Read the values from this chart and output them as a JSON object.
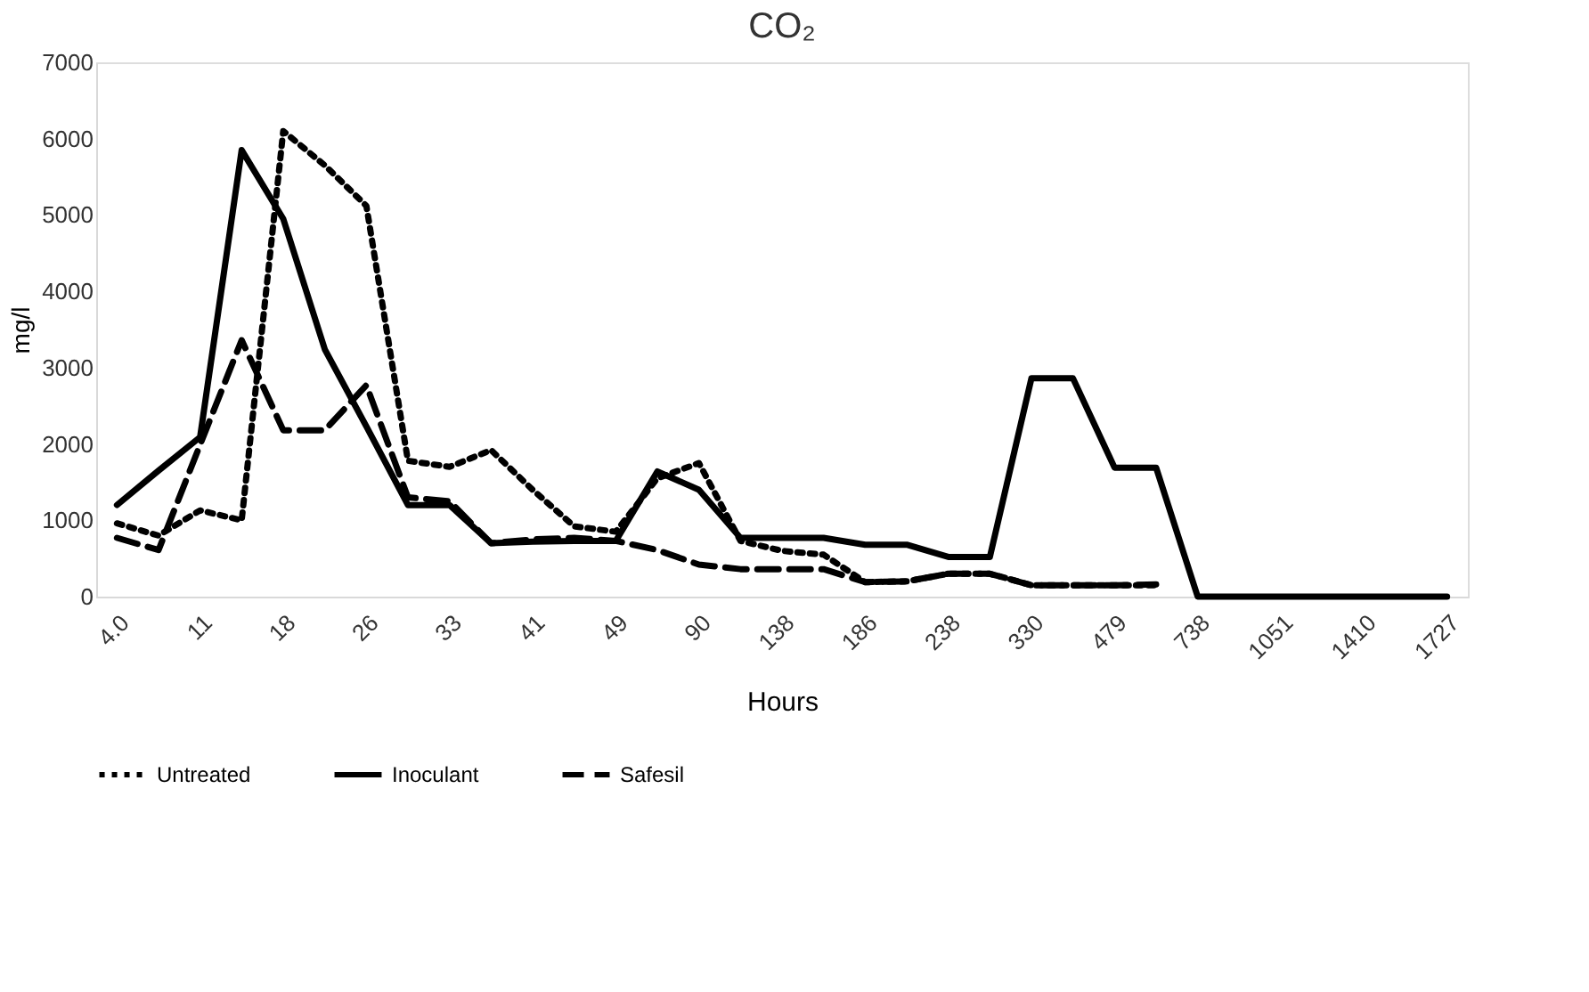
{
  "chart_data": {
    "type": "line",
    "title": "CO₂",
    "xlabel": "Hours",
    "ylabel": "mg/l",
    "categories": [
      "4.0",
      null,
      "11",
      null,
      "18",
      null,
      "26",
      null,
      "33",
      null,
      "41",
      null,
      "49",
      null,
      "90",
      null,
      "138",
      null,
      "186",
      null,
      "238",
      null,
      "330",
      null,
      "479",
      null,
      "738",
      null,
      "1051",
      null,
      "1410",
      null,
      "1727"
    ],
    "ylim": [
      0,
      7000
    ],
    "yticks": [
      0,
      1000,
      2000,
      3000,
      4000,
      5000,
      6000,
      7000
    ],
    "grid": false,
    "legend": "bottom",
    "marker": "none",
    "series": [
      {
        "name": "Untreated",
        "color": "#000000",
        "line_style": "dotted",
        "values": [
          960,
          800,
          1130,
          1000,
          6100,
          5650,
          5120,
          1780,
          1700,
          1920,
          1400,
          920,
          850,
          1550,
          1750,
          730,
          600,
          550,
          190,
          200,
          300,
          300,
          150,
          150,
          150,
          150,
          null,
          null,
          null,
          null,
          null,
          null,
          null
        ]
      },
      {
        "name": "Inoculant",
        "color": "#000000",
        "line_style": "solid",
        "values": [
          1200,
          1650,
          2090,
          5850,
          4950,
          3240,
          2230,
          1200,
          1200,
          700,
          720,
          730,
          730,
          1640,
          1400,
          770,
          770,
          770,
          680,
          680,
          520,
          520,
          2860,
          2860,
          1690,
          1690,
          0,
          0,
          0,
          0,
          0,
          0,
          0
        ]
      },
      {
        "name": "Safesil",
        "color": "#000000",
        "line_style": "dashed",
        "values": [
          770,
          610,
          1990,
          3360,
          2180,
          2180,
          2770,
          1300,
          1250,
          700,
          750,
          770,
          730,
          610,
          420,
          360,
          360,
          360,
          190,
          200,
          300,
          300,
          150,
          150,
          150,
          160,
          null,
          null,
          null,
          null,
          null,
          null,
          null
        ]
      }
    ]
  }
}
